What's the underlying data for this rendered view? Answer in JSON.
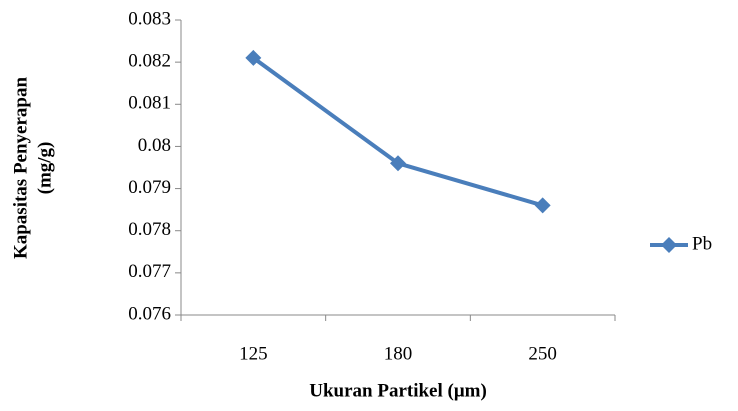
{
  "chart_data": {
    "type": "line",
    "x_label": "Ukuran Partikel (μm)",
    "y_label": [
      "Kapasitas Penyerapan",
      "(mg/g)"
    ],
    "categories": [
      "125",
      "180",
      "250"
    ],
    "series": [
      {
        "name": "Pb",
        "color": "#4a7ebb",
        "values": [
          0.0821,
          0.0796,
          0.0786
        ]
      }
    ],
    "ylim": [
      0.076,
      0.083
    ],
    "yticks": [
      0.076,
      0.077,
      0.078,
      0.079,
      0.08,
      0.081,
      0.082,
      0.083
    ],
    "grid": false,
    "legend": "right"
  }
}
